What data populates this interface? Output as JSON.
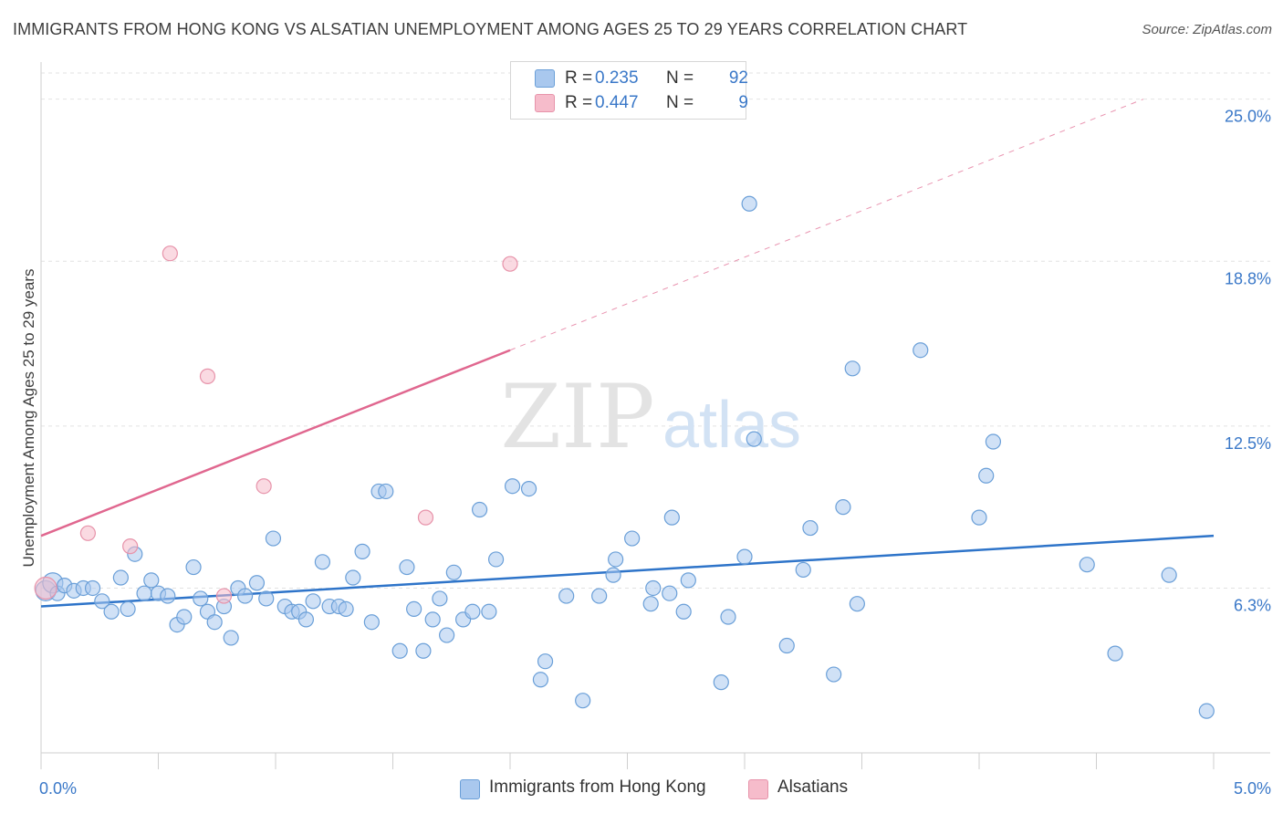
{
  "title": "IMMIGRANTS FROM HONG KONG VS ALSATIAN UNEMPLOYMENT AMONG AGES 25 TO 29 YEARS CORRELATION CHART",
  "source": "Source: ZipAtlas.com",
  "watermark": {
    "zip": "ZIP",
    "atlas": "atlas"
  },
  "legend": {
    "r_label": "R =",
    "n_label": "N =",
    "rows": [
      {
        "r": "0.235",
        "n": "92"
      },
      {
        "r": "0.447",
        "n": "9"
      }
    ]
  },
  "colors": {
    "blue_fill": "#a9c8ee",
    "blue_stroke": "#6a9fd8",
    "blue_line": "#2e74c9",
    "pink_fill": "#f6bccb",
    "pink_stroke": "#e793aa",
    "pink_line": "#e0678f",
    "tick_text": "#3a78c8",
    "grid": "#e2e2e2"
  },
  "chart_data": {
    "type": "scatter",
    "title": "IMMIGRANTS FROM HONG KONG VS ALSATIAN UNEMPLOYMENT AMONG AGES 25 TO 29 YEARS CORRELATION CHART",
    "xlabel": "",
    "ylabel": "Unemployment Among Ages 25 to 29 years",
    "xlim": [
      0.0,
      5.0
    ],
    "ylim": [
      0.0,
      26.0
    ],
    "x_tick_labels": [
      "0.0%",
      "5.0%"
    ],
    "y_ticks": [
      {
        "value": 6.3,
        "label": "6.3%"
      },
      {
        "value": 12.5,
        "label": "12.5%"
      },
      {
        "value": 18.8,
        "label": "18.8%"
      },
      {
        "value": 25.0,
        "label": "25.0%"
      }
    ],
    "grid": true,
    "legend_position": "bottom",
    "series": [
      {
        "name": "Immigrants from Hong Kong",
        "color": "#a9c8ee",
        "regression": {
          "x": [
            0.0,
            5.0
          ],
          "y": [
            5.6,
            8.3
          ]
        },
        "points": [
          [
            0.02,
            6.2
          ],
          [
            0.05,
            6.5
          ],
          [
            0.07,
            6.1
          ],
          [
            0.1,
            6.4
          ],
          [
            0.14,
            6.2
          ],
          [
            0.18,
            6.3
          ],
          [
            0.22,
            6.3
          ],
          [
            0.26,
            5.8
          ],
          [
            0.3,
            5.4
          ],
          [
            0.34,
            6.7
          ],
          [
            0.37,
            5.5
          ],
          [
            0.4,
            7.6
          ],
          [
            0.44,
            6.1
          ],
          [
            0.47,
            6.6
          ],
          [
            0.5,
            6.1
          ],
          [
            0.54,
            6.0
          ],
          [
            0.58,
            4.9
          ],
          [
            0.61,
            5.2
          ],
          [
            0.65,
            7.1
          ],
          [
            0.68,
            5.9
          ],
          [
            0.71,
            5.4
          ],
          [
            0.74,
            5.0
          ],
          [
            0.78,
            5.6
          ],
          [
            0.81,
            4.4
          ],
          [
            0.84,
            6.3
          ],
          [
            0.87,
            6.0
          ],
          [
            0.92,
            6.5
          ],
          [
            0.96,
            5.9
          ],
          [
            0.99,
            8.2
          ],
          [
            1.04,
            5.6
          ],
          [
            1.07,
            5.4
          ],
          [
            1.1,
            5.4
          ],
          [
            1.13,
            5.1
          ],
          [
            1.16,
            5.8
          ],
          [
            1.2,
            7.3
          ],
          [
            1.23,
            5.6
          ],
          [
            1.27,
            5.6
          ],
          [
            1.3,
            5.5
          ],
          [
            1.33,
            6.7
          ],
          [
            1.37,
            7.7
          ],
          [
            1.41,
            5.0
          ],
          [
            1.44,
            10.0
          ],
          [
            1.47,
            10.0
          ],
          [
            1.53,
            3.9
          ],
          [
            1.56,
            7.1
          ],
          [
            1.59,
            5.5
          ],
          [
            1.63,
            3.9
          ],
          [
            1.67,
            5.1
          ],
          [
            1.7,
            5.9
          ],
          [
            1.73,
            4.5
          ],
          [
            1.76,
            6.9
          ],
          [
            1.8,
            5.1
          ],
          [
            1.84,
            5.4
          ],
          [
            1.87,
            9.3
          ],
          [
            1.91,
            5.4
          ],
          [
            1.94,
            7.4
          ],
          [
            2.01,
            10.2
          ],
          [
            2.08,
            10.1
          ],
          [
            2.13,
            2.8
          ],
          [
            2.15,
            3.5
          ],
          [
            2.24,
            6.0
          ],
          [
            2.31,
            2.0
          ],
          [
            2.38,
            6.0
          ],
          [
            2.44,
            6.8
          ],
          [
            2.45,
            7.4
          ],
          [
            2.52,
            8.2
          ],
          [
            2.6,
            5.7
          ],
          [
            2.61,
            6.3
          ],
          [
            2.68,
            6.1
          ],
          [
            2.69,
            9.0
          ],
          [
            2.74,
            5.4
          ],
          [
            2.76,
            6.6
          ],
          [
            2.9,
            2.7
          ],
          [
            2.93,
            5.2
          ],
          [
            3.0,
            7.5
          ],
          [
            3.02,
            21.0
          ],
          [
            3.04,
            12.0
          ],
          [
            3.18,
            4.1
          ],
          [
            3.25,
            7.0
          ],
          [
            3.28,
            8.6
          ],
          [
            3.38,
            3.0
          ],
          [
            3.42,
            9.4
          ],
          [
            3.46,
            14.7
          ],
          [
            3.48,
            5.7
          ],
          [
            3.75,
            15.4
          ],
          [
            4.0,
            9.0
          ],
          [
            4.03,
            10.6
          ],
          [
            4.06,
            11.9
          ],
          [
            4.46,
            7.2
          ],
          [
            4.58,
            3.8
          ],
          [
            4.81,
            6.8
          ],
          [
            4.97,
            1.6
          ]
        ]
      },
      {
        "name": "Alsatians",
        "color": "#f6bccb",
        "regression": {
          "x": [
            0.0,
            2.0
          ],
          "y": [
            8.3,
            15.4
          ],
          "extended_to": [
            4.7,
            25.0
          ]
        },
        "points": [
          [
            0.02,
            6.3
          ],
          [
            0.2,
            8.4
          ],
          [
            0.38,
            7.9
          ],
          [
            0.55,
            19.1
          ],
          [
            0.71,
            14.4
          ],
          [
            0.78,
            6.0
          ],
          [
            0.95,
            10.2
          ],
          [
            1.64,
            9.0
          ],
          [
            2.0,
            18.7
          ]
        ]
      }
    ]
  }
}
